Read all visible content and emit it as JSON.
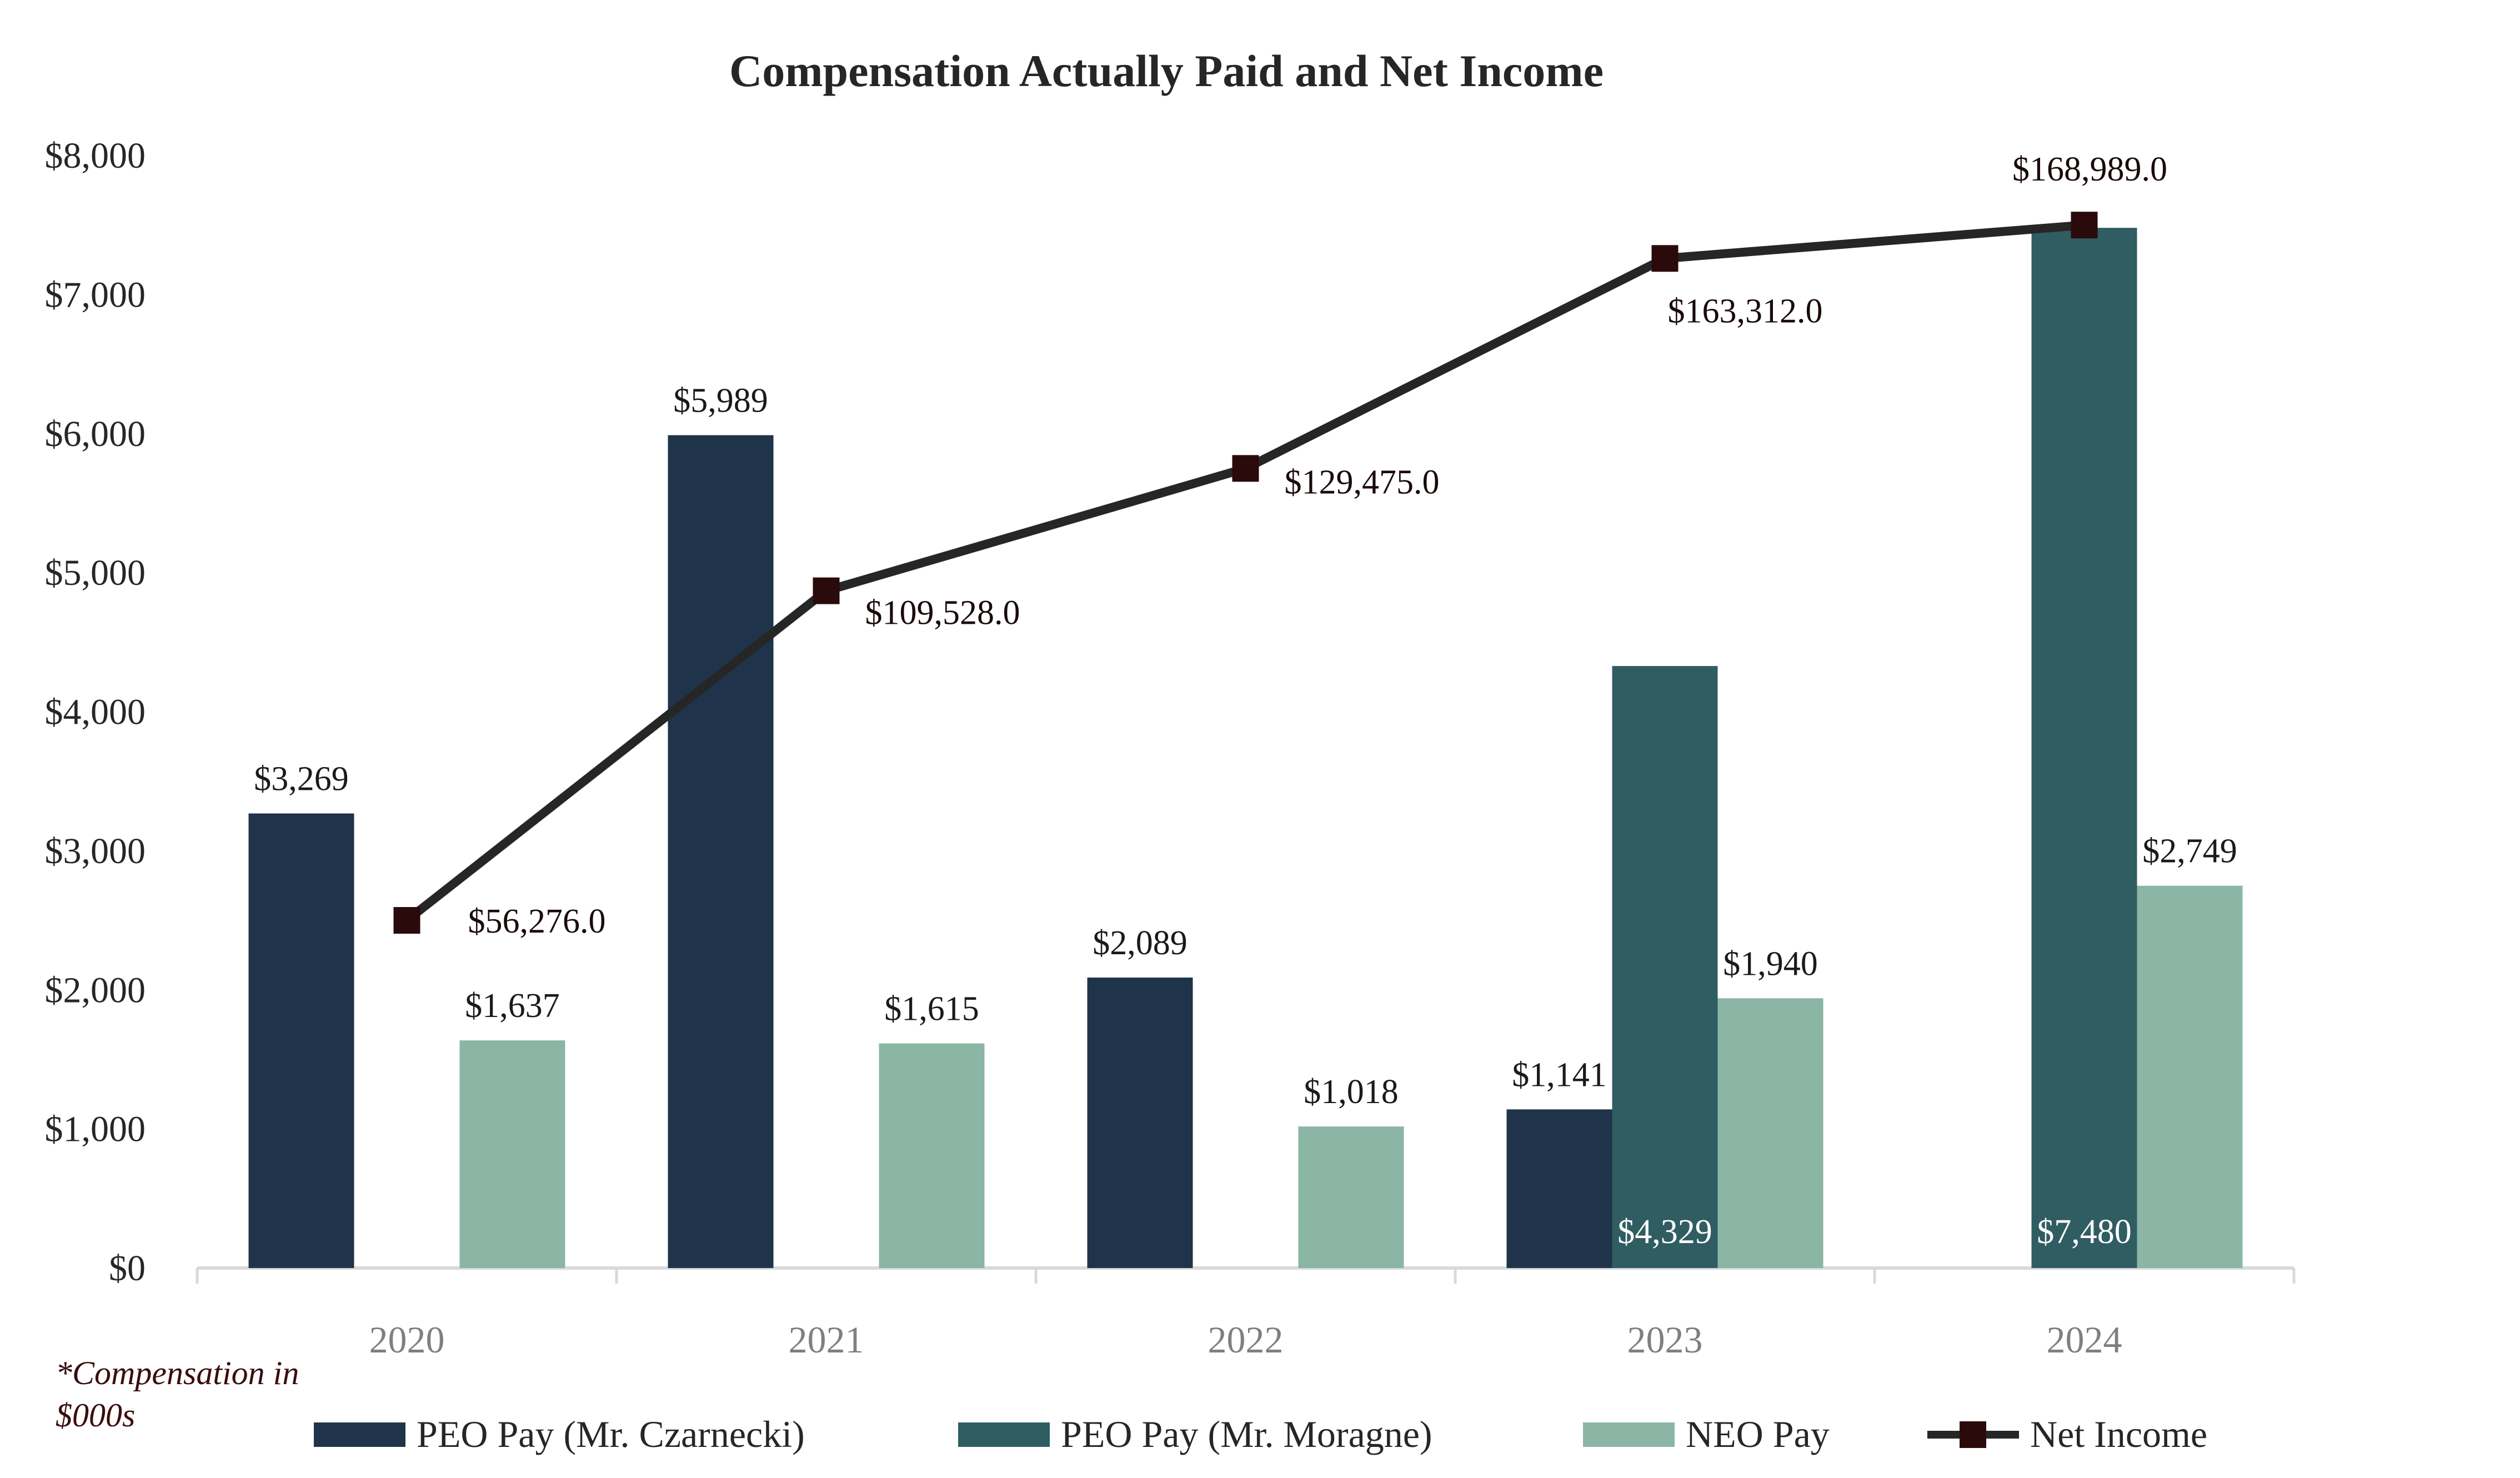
{
  "chart_data": {
    "type": "bar",
    "title": "Compensation Actually Paid and Net Income",
    "note_lines": [
      "*Compensation in",
      "$000s"
    ],
    "categories": [
      "2020",
      "2021",
      "2022",
      "2023",
      "2024"
    ],
    "y_axis": {
      "min": 0,
      "max": 8000,
      "step": 1000,
      "tick_labels": [
        "$0",
        "$1,000",
        "$2,000",
        "$3,000",
        "$4,000",
        "$5,000",
        "$6,000",
        "$7,000",
        "$8,000"
      ]
    },
    "series": [
      {
        "name": "PEO Pay (Mr. Czarnecki)",
        "type": "bar",
        "color": "#1f344b",
        "values": [
          3269,
          5989,
          2089,
          1141,
          null
        ],
        "labels": [
          "$3,269",
          "$5,989",
          "$2,089",
          "$1,141",
          ""
        ]
      },
      {
        "name": "PEO Pay (Mr. Moragne)",
        "type": "bar",
        "color": "#2f5d62",
        "values": [
          null,
          null,
          null,
          4329,
          7480
        ],
        "labels": [
          "",
          "",
          "",
          "$4,329",
          "$7,480"
        ]
      },
      {
        "name": "NEO Pay",
        "type": "bar",
        "color": "#8bb5a4",
        "values": [
          1637,
          1615,
          1018,
          1940,
          2749
        ],
        "labels": [
          "$1,637",
          "$1,615",
          "$1,018",
          "$1,940",
          "$2,749"
        ]
      },
      {
        "name": "Net Income",
        "type": "line",
        "color": "#262626",
        "marker_color": "#2a0a0a",
        "values": [
          56276.0,
          109528.0,
          129475.0,
          163312.0,
          168989.0
        ],
        "labels": [
          "$56,276.0",
          "$109,528.0",
          "$129,475.0",
          "$163,312.0",
          "$168,989.0"
        ],
        "plotted_on_left_axis_as": [
          2500,
          4870,
          5750,
          7260,
          7500
        ]
      }
    ]
  }
}
